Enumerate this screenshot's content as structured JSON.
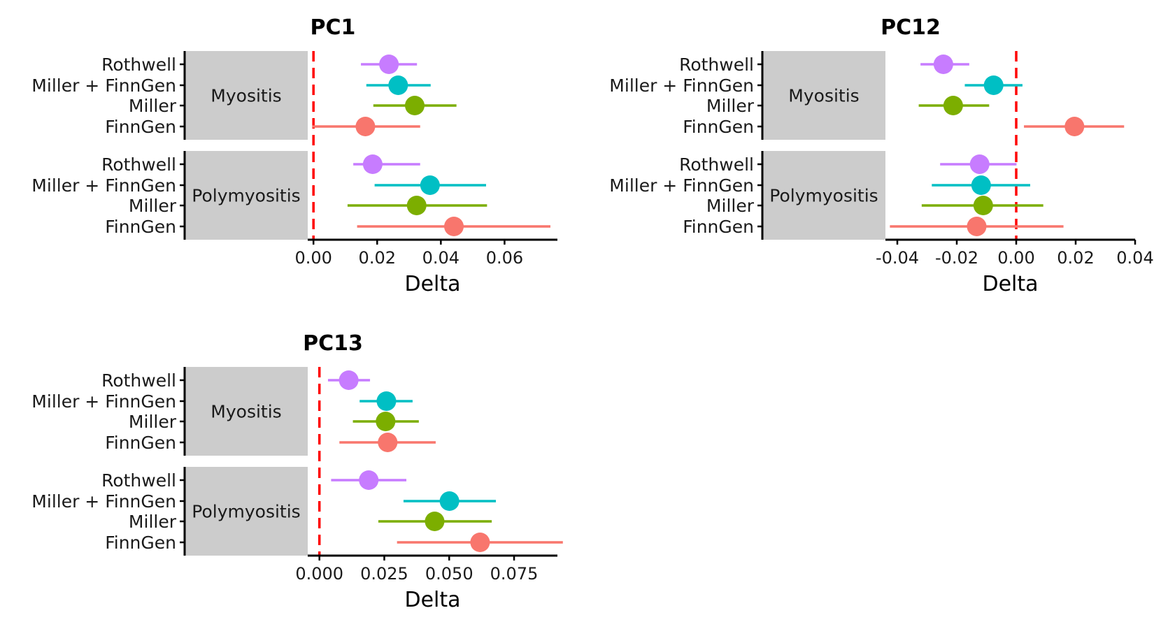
{
  "colors": {
    "Rothwell": "#C77CFF",
    "Miller + FinnGen": "#00BFC4",
    "Miller": "#7CAE00",
    "FinnGen": "#F8766D",
    "reference_line": "#FF0000",
    "strip_fill": "#CCCCCC",
    "axis": "#000000"
  },
  "chart_data": [
    {
      "type": "forest",
      "title": "PC1",
      "xlabel": "Delta",
      "xlim": [
        -0.0018,
        0.0766
      ],
      "x_ticks": [
        0.0,
        0.02,
        0.04,
        0.06
      ],
      "x_tick_labels": [
        "0.00",
        "0.02",
        "0.04",
        "0.06"
      ],
      "reference_line": 0,
      "groups": [
        {
          "name": "Myositis",
          "rows": [
            {
              "label": "Rothwell",
              "estimate": 0.0237,
              "low": 0.0149,
              "high": 0.0325
            },
            {
              "label": "Miller + FinnGen",
              "estimate": 0.0266,
              "low": 0.0166,
              "high": 0.0368
            },
            {
              "label": "Miller",
              "estimate": 0.0318,
              "low": 0.0188,
              "high": 0.0449
            },
            {
              "label": "FinnGen",
              "estimate": 0.0163,
              "low": -0.0004,
              "high": 0.0335
            }
          ]
        },
        {
          "name": "Polymyositis",
          "rows": [
            {
              "label": "Rothwell",
              "estimate": 0.0186,
              "low": 0.0125,
              "high": 0.0335
            },
            {
              "label": "Miller + FinnGen",
              "estimate": 0.0366,
              "low": 0.0192,
              "high": 0.0542
            },
            {
              "label": "Miller",
              "estimate": 0.0324,
              "low": 0.0107,
              "high": 0.0545
            },
            {
              "label": "FinnGen",
              "estimate": 0.0441,
              "low": 0.0137,
              "high": 0.0744
            }
          ]
        }
      ]
    },
    {
      "type": "forest",
      "title": "PC12",
      "xlabel": "Delta",
      "xlim": [
        -0.044,
        0.04
      ],
      "x_ticks": [
        -0.04,
        -0.02,
        0.0,
        0.02,
        0.04
      ],
      "x_tick_labels": [
        "-0.04",
        "-0.02",
        "0.00",
        "0.02",
        "0.04"
      ],
      "reference_line": 0,
      "groups": [
        {
          "name": "Myositis",
          "rows": [
            {
              "label": "Rothwell",
              "estimate": -0.0245,
              "low": -0.0322,
              "high": -0.0158
            },
            {
              "label": "Miller + FinnGen",
              "estimate": -0.0076,
              "low": -0.0173,
              "high": 0.0021
            },
            {
              "label": "Miller",
              "estimate": -0.0212,
              "low": -0.0328,
              "high": -0.0091
            },
            {
              "label": "FinnGen",
              "estimate": 0.0196,
              "low": 0.0026,
              "high": 0.0363
            }
          ]
        },
        {
          "name": "Polymyositis",
          "rows": [
            {
              "label": "Rothwell",
              "estimate": -0.0123,
              "low": -0.0256,
              "high": 0.0001
            },
            {
              "label": "Miller + FinnGen",
              "estimate": -0.0118,
              "low": -0.0284,
              "high": 0.0047
            },
            {
              "label": "Miller",
              "estimate": -0.0111,
              "low": -0.0318,
              "high": 0.0091
            },
            {
              "label": "FinnGen",
              "estimate": -0.0133,
              "low": -0.0425,
              "high": 0.0159
            }
          ]
        }
      ]
    },
    {
      "type": "forest",
      "title": "PC13",
      "xlabel": "Delta",
      "xlim": [
        -0.0045,
        0.0917
      ],
      "x_ticks": [
        0.0,
        0.025,
        0.05,
        0.075
      ],
      "x_tick_labels": [
        "0.000",
        "0.025",
        "0.050",
        "0.075"
      ],
      "reference_line": 0,
      "groups": [
        {
          "name": "Myositis",
          "rows": [
            {
              "label": "Rothwell",
              "estimate": 0.0113,
              "low": 0.0033,
              "high": 0.0195
            },
            {
              "label": "Miller + FinnGen",
              "estimate": 0.0258,
              "low": 0.0155,
              "high": 0.0359
            },
            {
              "label": "Miller",
              "estimate": 0.0255,
              "low": 0.0129,
              "high": 0.0383
            },
            {
              "label": "FinnGen",
              "estimate": 0.0263,
              "low": 0.0077,
              "high": 0.0448
            }
          ]
        },
        {
          "name": "Polymyositis",
          "rows": [
            {
              "label": "Rothwell",
              "estimate": 0.019,
              "low": 0.0045,
              "high": 0.0335
            },
            {
              "label": "Miller + FinnGen",
              "estimate": 0.0501,
              "low": 0.0324,
              "high": 0.068
            },
            {
              "label": "Miller",
              "estimate": 0.0444,
              "low": 0.0227,
              "high": 0.0664
            },
            {
              "label": "FinnGen",
              "estimate": 0.0619,
              "low": 0.0299,
              "high": 0.0938
            }
          ]
        }
      ]
    }
  ]
}
